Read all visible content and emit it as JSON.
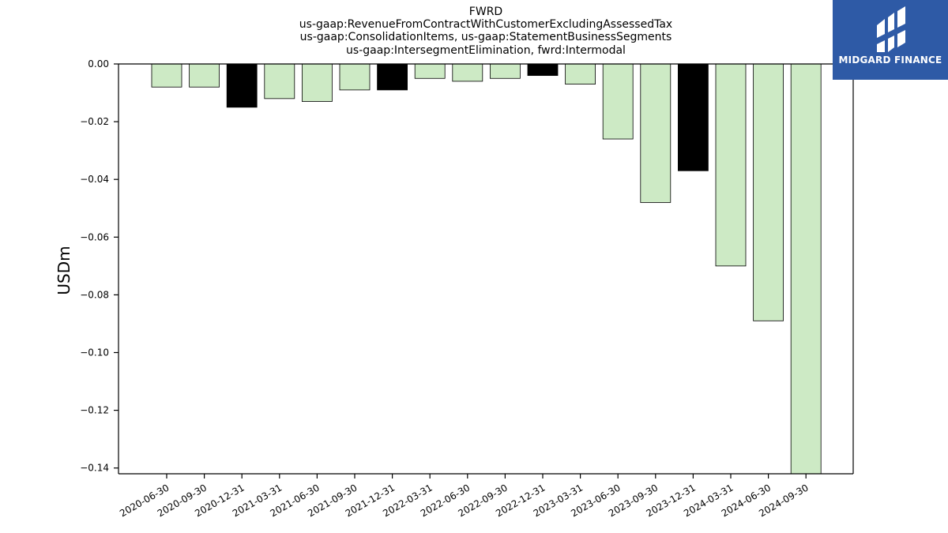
{
  "logo": {
    "text": "MIDGARD FINANCE",
    "background": "#2e5aa6"
  },
  "chart_data": {
    "type": "bar",
    "title_lines": [
      "FWRD",
      "us-gaap:RevenueFromContractWithCustomerExcludingAssessedTax",
      "us-gaap:ConsolidationItems, us-gaap:StatementBusinessSegments",
      "us-gaap:IntersegmentElimination, fwrd:Intermodal"
    ],
    "xlabel": "",
    "ylabel": "USDm",
    "categories": [
      "2020-06-30",
      "2020-09-30",
      "2020-12-31",
      "2021-03-31",
      "2021-06-30",
      "2021-09-30",
      "2021-12-31",
      "2022-03-31",
      "2022-06-30",
      "2022-09-30",
      "2022-12-31",
      "2023-03-31",
      "2023-06-30",
      "2023-09-30",
      "2023-12-31",
      "2024-03-31",
      "2024-06-30",
      "2024-09-30"
    ],
    "values": [
      -0.008,
      -0.008,
      -0.015,
      -0.012,
      -0.013,
      -0.009,
      -0.009,
      -0.005,
      -0.006,
      -0.005,
      -0.004,
      -0.007,
      -0.026,
      -0.048,
      -0.037,
      -0.07,
      -0.089,
      -0.142
    ],
    "highlight": [
      false,
      false,
      true,
      false,
      false,
      false,
      true,
      false,
      false,
      false,
      true,
      false,
      false,
      false,
      true,
      false,
      false,
      false
    ],
    "colors": {
      "normal": "#cdeac5",
      "highlight": "#000000",
      "edge": "#000000"
    },
    "yticks": [
      0.0,
      -0.02,
      -0.04,
      -0.06,
      -0.08,
      -0.1,
      -0.12,
      -0.14
    ],
    "ytick_labels": [
      "0.00",
      "−0.02",
      "−0.04",
      "−0.06",
      "−0.08",
      "−0.10",
      "−0.12",
      "−0.14"
    ],
    "ylim": [
      -0.142,
      0.0
    ],
    "grid": false,
    "legend": "none"
  }
}
